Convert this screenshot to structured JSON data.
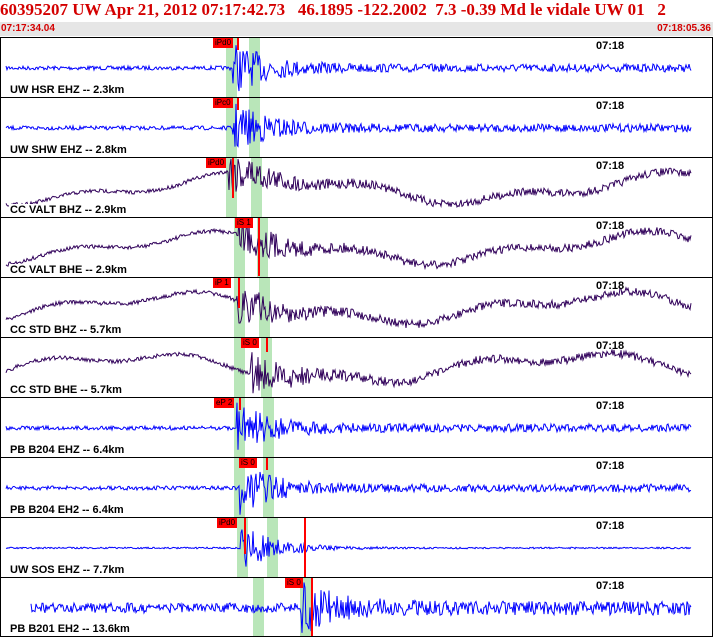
{
  "header": {
    "title": "60395207 UW Apr 21, 2012 07:17:42.73   46.1895 -122.2002  7.3 -0.39 Md le vidale UW 01   2",
    "start_time": "07:17:34.04",
    "end_time": "07:18:05.36"
  },
  "colors": {
    "title": "#d40000",
    "trace_vertical": "#0000ff",
    "trace_horizontal": "#30005a",
    "pick": "#ff0000",
    "window": "#b9e6b9"
  },
  "panels": [
    {
      "label": "UW HSR EHZ -- 2.3km",
      "time": "07:18",
      "pick": "iPd0",
      "color": "#0000ff",
      "kind": "vert"
    },
    {
      "label": "UW SHW EHZ -- 2.8km",
      "time": "07:18",
      "pick": "iPc0",
      "color": "#0000ff",
      "kind": "vert"
    },
    {
      "label": "CC VALT BHZ -- 2.9km",
      "time": "07:18",
      "pick": "iPd0",
      "color": "#30005a",
      "kind": "long"
    },
    {
      "label": "CC VALT BHE -- 2.9km",
      "time": "07:18",
      "pick": "iS 1",
      "color": "#30005a",
      "kind": "long"
    },
    {
      "label": "CC STD BHZ -- 5.7km",
      "time": "07:18",
      "pick": "iP 1",
      "color": "#30005a",
      "kind": "long"
    },
    {
      "label": "CC STD BHE -- 5.7km",
      "time": "07:18",
      "pick": "iS 0",
      "color": "#30005a",
      "kind": "long"
    },
    {
      "label": "PB B204 EHZ -- 6.4km",
      "time": "07:18",
      "pick": "eP 2",
      "color": "#0000ff",
      "kind": "vert"
    },
    {
      "label": "PB B204 EH2 -- 6.4km",
      "time": "07:18",
      "pick": "iS 0",
      "color": "#0000ff",
      "kind": "vert"
    },
    {
      "label": "UW SOS EHZ -- 7.7km",
      "time": "07:18",
      "pick": "iPd0",
      "color": "#0000ff",
      "kind": "quiet"
    },
    {
      "label": "PB B201 EH2 -- 13.6km",
      "time": "07:18",
      "pick": "iS 0",
      "color": "#0000ff",
      "kind": "noisy"
    }
  ]
}
